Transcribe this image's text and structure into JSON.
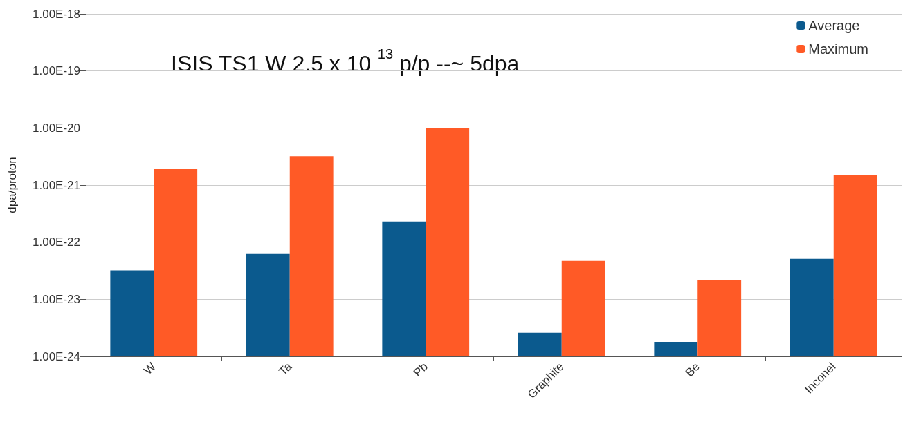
{
  "chart_data": {
    "type": "bar",
    "ylabel": "dpa/proton",
    "log": true,
    "grid": "y",
    "legend": "top right",
    "annotations": [
      "ISIS TS1 W 2.5 x 10 $^{13}$ p/p --~ 5dpa"
    ],
    "categories": [
      "W",
      "Ta",
      "Pb",
      "Graphite",
      "Be",
      "Inconel"
    ],
    "ylim": [
      1e-24,
      1e-18
    ],
    "yticks": [
      {
        "value": 1e-24,
        "label": "1.00E-24"
      },
      {
        "value": 1e-23,
        "label": "1.00E-23"
      },
      {
        "value": 1e-22,
        "label": "1.00E-22"
      },
      {
        "value": 1e-21,
        "label": "1.00E-21"
      },
      {
        "value": 1e-20,
        "label": "1.00E-20"
      },
      {
        "value": 1e-19,
        "label": "1.00E-19"
      },
      {
        "value": 1e-18,
        "label": "1.00E-18"
      }
    ],
    "series": [
      {
        "name": "Average",
        "color": "#0b5a8e",
        "values": [
          3.2e-23,
          6.2e-23,
          2.3e-22,
          2.6e-24,
          1.8e-24,
          5.1e-23
        ]
      },
      {
        "name": "Maximum",
        "color": "#ff5a26",
        "values": [
          1.9e-21,
          3.2e-21,
          1e-20,
          4.7e-23,
          2.2e-23,
          1.5e-21
        ]
      }
    ]
  }
}
